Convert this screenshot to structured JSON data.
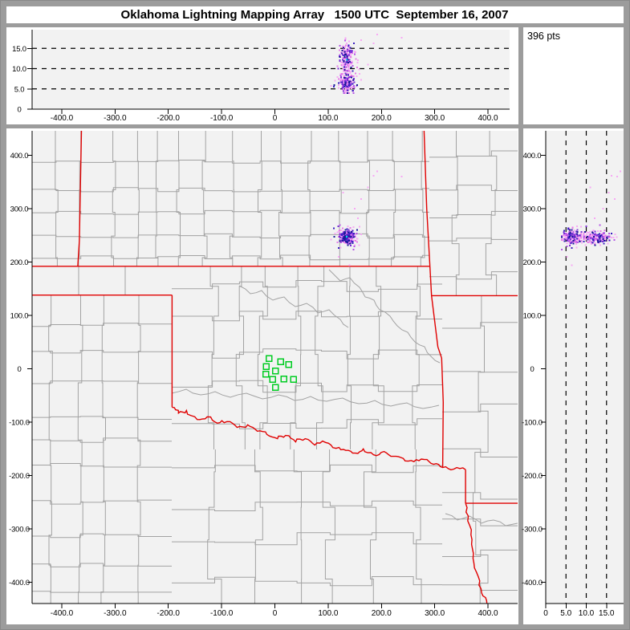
{
  "window": {
    "title": "Oklahoma Lightning Mapping Array   1500 UTC  September 16, 2007"
  },
  "stats": {
    "points_label": "396 pts"
  },
  "palette": {
    "frame": "#9c9c9c",
    "panel_bg": "#ffffff",
    "plot_bg": "#f2f2f2",
    "state_border": "#e00000",
    "county_line": "#a2a2a2",
    "dash_line": "#000000",
    "station": "#00cc22",
    "cyan_point": "#00dfe8",
    "point_colors": [
      "#f7a8f4",
      "#e77ae8",
      "#b455e6",
      "#7a2fd8",
      "#3a1fc0",
      "#191999"
    ],
    "point_color_weights": [
      0.42,
      0.2,
      0.13,
      0.11,
      0.09,
      0.05
    ]
  },
  "chart_data": {
    "type": "scatter",
    "title": "Oklahoma Lightning Mapping Array  1500 UTC  September 16, 2007",
    "n_points": 396,
    "panels": [
      {
        "id": "alt-vs-ew",
        "xlim": [
          -455,
          441
        ],
        "ylim": [
          0,
          19.6
        ],
        "grid": "dashed-horizontal"
      },
      {
        "id": "plan-view",
        "xlim": [
          -456,
          456
        ],
        "ylim": [
          -440,
          446
        ],
        "grid": "none"
      },
      {
        "id": "alt-vs-ns",
        "xlim": [
          0,
          19.2
        ],
        "ylim": [
          -440,
          446
        ],
        "grid": "dashed-vertical"
      }
    ],
    "axes": {
      "ew_km": {
        "values": [
          -400,
          -300,
          -200,
          -100,
          0,
          100,
          200,
          300,
          400
        ],
        "labels": [
          "-400.0",
          "-300.0",
          "-200.0",
          "-100.0",
          "0",
          "100.0",
          "200.0",
          "300.0",
          "400.0"
        ]
      },
      "ns_km": {
        "values": [
          400,
          300,
          200,
          100,
          0,
          -100,
          -200,
          -300,
          -400
        ],
        "labels": [
          "400.0",
          "300.0",
          "200.0",
          "100.0",
          "0",
          "-100.0",
          "-200.0",
          "-300.0",
          "-400.0"
        ]
      },
      "alt_km": {
        "values": [
          0,
          5,
          10,
          15
        ],
        "labels": [
          "0",
          "5.0",
          "10.0",
          "15.0"
        ],
        "dashed_at": [
          5,
          10,
          15
        ]
      }
    },
    "flash_cluster": {
      "center_ew_km": 135,
      "center_ns_km": 246,
      "ew_spread_km": 6,
      "ns_spread_km": 5,
      "wide_halo_km": 14,
      "alt_mode_low_km": 6.6,
      "alt_mode_high_km": 12.7,
      "alt_range_km": [
        4,
        19.4
      ],
      "n": 385
    },
    "outlier_points": [
      {
        "ew": 185,
        "ns": 362,
        "alt": 16.2
      },
      {
        "ew": 192,
        "ns": 370,
        "alt": 18.4
      },
      {
        "ew": 238,
        "ns": 360,
        "alt": 17.6
      },
      {
        "ew": 150,
        "ns": 300,
        "alt": 14.2
      },
      {
        "ew": 156,
        "ns": 282,
        "alt": 12.1
      },
      {
        "ew": 140,
        "ns": 194,
        "alt": 6.4
      },
      {
        "ew": 175,
        "ns": 340,
        "alt": 11.0
      },
      {
        "ew": 128,
        "ns": 330,
        "alt": 15.5
      },
      {
        "ew": 162,
        "ns": 318,
        "alt": 17.0
      },
      {
        "ew": 120,
        "ns": 210,
        "alt": 5.2
      }
    ],
    "stations_km": [
      [
        -11,
        19
      ],
      [
        11,
        13
      ],
      [
        26,
        8
      ],
      [
        -16,
        4
      ],
      [
        1,
        -4
      ],
      [
        -17,
        -10
      ],
      [
        -4,
        -20
      ],
      [
        17,
        -19
      ],
      [
        35,
        -20
      ],
      [
        1,
        -35
      ]
    ],
    "state_borders": [
      {
        "name": "colorado-kansas",
        "pts": [
          [
            -363,
            446
          ],
          [
            -367,
            240
          ],
          [
            -370,
            192
          ]
        ]
      },
      {
        "name": "kansas-oklahoma",
        "pts": [
          [
            -455,
            192
          ],
          [
            291,
            192
          ]
        ]
      },
      {
        "name": "kansas-missouri",
        "pts": [
          [
            280,
            446
          ],
          [
            285,
            300
          ],
          [
            291,
            192
          ]
        ]
      },
      {
        "name": "oklahoma-missouri",
        "pts": [
          [
            291,
            192
          ],
          [
            294,
            137
          ]
        ]
      },
      {
        "name": "missouri-arkansas",
        "pts": [
          [
            294,
            137
          ],
          [
            461,
            137
          ]
        ]
      },
      {
        "name": "texas-panhandle-north",
        "pts": [
          [
            -455,
            138
          ],
          [
            -193,
            138
          ]
        ]
      },
      {
        "name": "texas-oklahoma-100w",
        "pts": [
          [
            -193,
            138
          ],
          [
            -193,
            -72
          ]
        ]
      },
      {
        "name": "oklahoma-arkansas",
        "pts": [
          [
            294,
            137
          ],
          [
            306,
            41
          ],
          [
            313,
            20
          ],
          [
            316,
            -63
          ],
          [
            315,
            -185
          ]
        ]
      },
      {
        "name": "red-river",
        "pts": [
          [
            -193,
            -72
          ],
          [
            -181,
            -83
          ],
          [
            -166,
            -78
          ],
          [
            -146,
            -95
          ],
          [
            -127,
            -90
          ],
          [
            -108,
            -102
          ],
          [
            -90,
            -99
          ],
          [
            -71,
            -110
          ],
          [
            -51,
            -105
          ],
          [
            -33,
            -117
          ],
          [
            -15,
            -123
          ],
          [
            5,
            -131
          ],
          [
            20,
            -125
          ],
          [
            39,
            -137
          ],
          [
            57,
            -131
          ],
          [
            75,
            -143
          ],
          [
            95,
            -138
          ],
          [
            115,
            -149
          ],
          [
            133,
            -153
          ],
          [
            151,
            -158
          ],
          [
            166,
            -150
          ],
          [
            185,
            -161
          ],
          [
            205,
            -155
          ],
          [
            223,
            -164
          ],
          [
            241,
            -168
          ],
          [
            261,
            -174
          ],
          [
            280,
            -170
          ],
          [
            298,
            -179
          ],
          [
            315,
            -185
          ],
          [
            336,
            -188
          ],
          [
            358,
            -189
          ]
        ]
      },
      {
        "name": "texas-arkansas",
        "pts": [
          [
            358,
            -189
          ],
          [
            358,
            -252
          ]
        ]
      },
      {
        "name": "arkansas-louisiana",
        "pts": [
          [
            358,
            -252
          ],
          [
            461,
            -252
          ]
        ]
      },
      {
        "name": "texas-louisiana",
        "pts": [
          [
            358,
            -252
          ],
          [
            362,
            -285
          ],
          [
            370,
            -320
          ],
          [
            372,
            -355
          ],
          [
            382,
            -390
          ],
          [
            388,
            -420
          ],
          [
            398,
            -440
          ]
        ]
      }
    ]
  }
}
